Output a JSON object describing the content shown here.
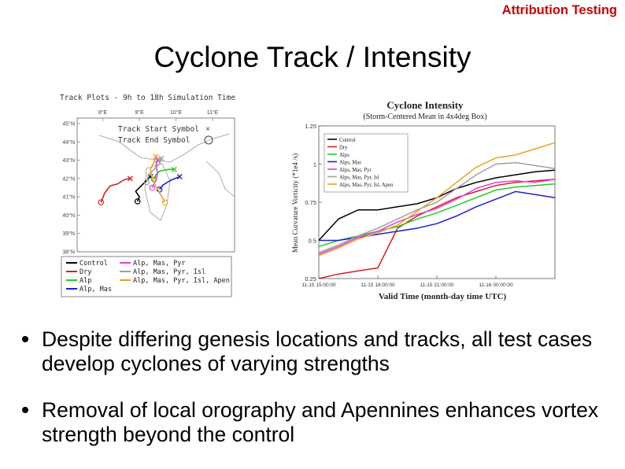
{
  "header": {
    "corner_label": "Attribution Testing",
    "title": "Cyclone Track / Intensity"
  },
  "bullets": [
    "Despite differing genesis locations and tracks, all test cases develop cyclones of varying strengths",
    "Removal of local orography and Apennines enhances vortex strength beyond the control"
  ],
  "chart_data": [
    {
      "type": "line",
      "title": "Track Plots - 9h to 18h Simulation Time",
      "lon_ticks": [
        {
          "lon": 8,
          "label": "8°E"
        },
        {
          "lon": 9,
          "label": "9°E"
        },
        {
          "lon": 10,
          "label": "10°E"
        },
        {
          "lon": 11,
          "label": "11°E"
        }
      ],
      "lat_ticks": [
        {
          "lat": 45,
          "label": "45°N"
        },
        {
          "lat": 44,
          "label": "44°N"
        },
        {
          "lat": 43,
          "label": "43°N"
        },
        {
          "lat": 42,
          "label": "42°N"
        },
        {
          "lat": 41,
          "label": "41°N"
        },
        {
          "lat": 40,
          "label": "40°N"
        },
        {
          "lat": 39,
          "label": "39°N"
        },
        {
          "lat": 38,
          "label": "38°N"
        }
      ],
      "xlim": [
        7.3,
        11.6
      ],
      "ylim": [
        38,
        45.3
      ],
      "symbol_legend": [
        {
          "label": "Track Start Symbol",
          "symbol": "×"
        },
        {
          "label": "Track End Symbol",
          "symbol": "○"
        }
      ],
      "legend": [
        {
          "label": "Control",
          "color": "#000000"
        },
        {
          "label": "Alp, Mas, Pyr",
          "color": "#e040e0"
        },
        {
          "label": "Dry",
          "color": "#d42020"
        },
        {
          "label": "Alp, Mas, Pyr, Isl",
          "color": "#a0a0a0"
        },
        {
          "label": "Alp",
          "color": "#22cc22"
        },
        {
          "label": "Alp, Mas, Pyr, Isl, Apen",
          "color": "#f0a020"
        },
        {
          "label": "Alp, Mas",
          "color": "#2020cc"
        }
      ],
      "series": [
        {
          "name": "Control",
          "color": "#000000",
          "points": [
            [
              9.3,
              42.1
            ],
            [
              9.2,
              41.9
            ],
            [
              9.05,
              41.6
            ],
            [
              8.9,
              41.3
            ],
            [
              9.0,
              41.0
            ],
            [
              8.95,
              40.75
            ]
          ]
        },
        {
          "name": "Dry",
          "color": "#d42020",
          "points": [
            [
              8.75,
              42.0
            ],
            [
              8.6,
              41.95
            ],
            [
              8.4,
              41.7
            ],
            [
              8.2,
              41.6
            ],
            [
              8.05,
              41.2
            ],
            [
              7.95,
              40.7
            ]
          ]
        },
        {
          "name": "Alp",
          "color": "#22cc22",
          "points": [
            [
              9.95,
              42.5
            ],
            [
              9.8,
              42.5
            ],
            [
              9.55,
              42.4
            ],
            [
              9.45,
              42.2
            ],
            [
              9.4,
              41.95
            ]
          ]
        },
        {
          "name": "Alp, Mas",
          "color": "#2020cc",
          "points": [
            [
              10.1,
              42.1
            ],
            [
              9.85,
              41.9
            ],
            [
              9.65,
              41.65
            ],
            [
              9.55,
              41.4
            ]
          ]
        },
        {
          "name": "Alp, Mas, Pyr",
          "color": "#e040e0",
          "points": [
            [
              9.5,
              43.0
            ],
            [
              9.45,
              42.7
            ],
            [
              9.5,
              42.3
            ],
            [
              9.45,
              41.9
            ],
            [
              9.35,
              41.5
            ]
          ]
        },
        {
          "name": "Alp, Mas, Pyr, Isl",
          "color": "#a0a0a0",
          "points": [
            [
              9.6,
              43.1
            ],
            [
              9.55,
              42.8
            ],
            [
              9.4,
              42.5
            ],
            [
              9.25,
              42.2
            ],
            [
              9.2,
              41.8
            ]
          ]
        },
        {
          "name": "Alp, Mas, Pyr, Isl, Apen",
          "color": "#f0a020",
          "points": [
            [
              9.45,
              43.2
            ],
            [
              9.4,
              42.9
            ],
            [
              9.3,
              42.5
            ],
            [
              9.35,
              42.0
            ],
            [
              9.5,
              41.4
            ],
            [
              9.7,
              40.7
            ]
          ]
        }
      ]
    },
    {
      "type": "line",
      "title": "Cyclone Intensity",
      "subtitle": "(Storm-Centered Mean in 4x4deg Box)",
      "xlabel": "Valid Time (month-day time UTC)",
      "ylabel": "Mean Curvature Vorticity (*1e4 /s)",
      "ylim": [
        0.25,
        1.25
      ],
      "yticks": [
        {
          "v": 0.25,
          "label": "0.25"
        },
        {
          "v": 0.5,
          "label": "0.5"
        },
        {
          "v": 0.75,
          "label": "0.75"
        },
        {
          "v": 1.0,
          "label": "1"
        },
        {
          "v": 1.25,
          "label": "1.25"
        }
      ],
      "xlim": [
        0,
        12
      ],
      "xticks": [
        {
          "v": 0,
          "label": "11-15 15:00:00"
        },
        {
          "v": 3,
          "label": "11-15 18:00:00"
        },
        {
          "v": 6,
          "label": "11-15 21:00:00"
        },
        {
          "v": 9,
          "label": "11-16 00:00:00"
        }
      ],
      "x": [
        0,
        1,
        2,
        3,
        4,
        5,
        6,
        7,
        8,
        9,
        10,
        11,
        12
      ],
      "series": [
        {
          "name": "Control",
          "color": "#000000",
          "values": [
            0.5,
            0.64,
            0.7,
            0.7,
            0.72,
            0.74,
            0.78,
            0.84,
            0.88,
            0.91,
            0.93,
            0.95,
            0.96
          ]
        },
        {
          "name": "Dry",
          "color": "#d42020",
          "values": [
            0.25,
            0.28,
            0.3,
            0.32,
            0.58,
            0.66,
            0.72,
            0.78,
            0.82,
            0.86,
            0.88,
            0.89,
            0.9
          ]
        },
        {
          "name": "Alps",
          "color": "#22cc22",
          "values": [
            0.46,
            0.5,
            0.53,
            0.56,
            0.59,
            0.64,
            0.68,
            0.73,
            0.78,
            0.83,
            0.85,
            0.86,
            0.87
          ]
        },
        {
          "name": "Alps, Mas",
          "color": "#2020cc",
          "values": [
            0.5,
            0.5,
            0.52,
            0.54,
            0.56,
            0.58,
            0.61,
            0.66,
            0.72,
            0.77,
            0.82,
            0.8,
            0.78
          ]
        },
        {
          "name": "Alps, Mas, Pyr",
          "color": "#e040e0",
          "values": [
            0.41,
            0.46,
            0.52,
            0.56,
            0.62,
            0.67,
            0.71,
            0.77,
            0.84,
            0.88,
            0.89,
            0.88,
            0.9
          ]
        },
        {
          "name": "Alps, Mas, Pyr, Isl",
          "color": "#a0a0a0",
          "values": [
            0.42,
            0.47,
            0.53,
            0.58,
            0.64,
            0.7,
            0.75,
            0.84,
            0.93,
            1.0,
            1.01,
            0.99,
            0.97
          ]
        },
        {
          "name": "Alps, Mas, Pyr, Isl, Apen",
          "color": "#f0a020",
          "values": [
            0.4,
            0.45,
            0.51,
            0.55,
            0.6,
            0.69,
            0.78,
            0.88,
            0.98,
            1.04,
            1.06,
            1.1,
            1.14
          ]
        }
      ]
    }
  ]
}
